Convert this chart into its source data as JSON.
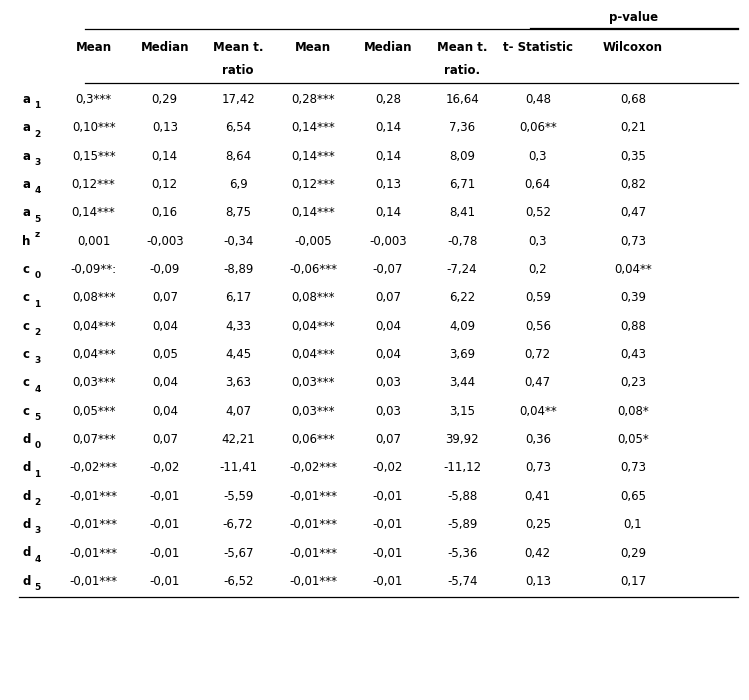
{
  "pvalue_header": "p-value",
  "col_headers_line1": [
    "Mean",
    "Median",
    "Mean t.",
    "Mean",
    "Median",
    "Mean t.",
    "t- Statistic",
    "Wilcoxon"
  ],
  "col_headers_line2": [
    "",
    "",
    "ratio",
    "",
    "",
    "ratio.",
    "",
    ""
  ],
  "row_labels_raw": [
    "a1",
    "a2",
    "a3",
    "a4",
    "a5",
    "hz",
    "c0",
    "c1",
    "c2",
    "c3",
    "c4",
    "c5",
    "d0",
    "d1",
    "d2",
    "d3",
    "d4",
    "d5"
  ],
  "col1": [
    "0,3***",
    "0,10***",
    "0,15***",
    "0,12***",
    "0,14***",
    "0,001",
    "-0,09**:",
    "0,08***",
    "0,04***",
    "0,04***",
    "0,03***",
    "0,05***",
    "0,07***",
    "-0,02***",
    "-0,01***",
    "-0,01***",
    "-0,01***",
    "-0,01***"
  ],
  "col2": [
    "0,29",
    "0,13",
    "0,14",
    "0,12",
    "0,16",
    "-0,003",
    "-0,09",
    "0,07",
    "0,04",
    "0,05",
    "0,04",
    "0,04",
    "0,07",
    "-0,02",
    "-0,01",
    "-0,01",
    "-0,01",
    "-0,01"
  ],
  "col3": [
    "17,42",
    "6,54",
    "8,64",
    "6,9",
    "8,75",
    "-0,34",
    "-8,89",
    "6,17",
    "4,33",
    "4,45",
    "3,63",
    "4,07",
    "42,21",
    "-11,41",
    "-5,59",
    "-6,72",
    "-5,67",
    "-6,52"
  ],
  "col4": [
    "0,28***",
    "0,14***",
    "0,14***",
    "0,12***",
    "0,14***",
    "-0,005",
    "-0,06***",
    "0,08***",
    "0,04***",
    "0,04***",
    "0,03***",
    "0,03***",
    "0,06***",
    "-0,02***",
    "-0,01***",
    "-0,01***",
    "-0,01***",
    "-0,01***"
  ],
  "col5": [
    "0,28",
    "0,14",
    "0,14",
    "0,13",
    "0,14",
    "-0,003",
    "-0,07",
    "0,07",
    "0,04",
    "0,04",
    "0,03",
    "0,03",
    "0,07",
    "-0,02",
    "-0,01",
    "-0,01",
    "-0,01",
    "-0,01"
  ],
  "col6": [
    "16,64",
    "7,36",
    "8,09",
    "6,71",
    "8,41",
    "-0,78",
    "-7,24",
    "6,22",
    "4,09",
    "3,69",
    "3,44",
    "3,15",
    "39,92",
    "-11,12",
    "-5,88",
    "-5,89",
    "-5,36",
    "-5,74"
  ],
  "col7": [
    "0,48",
    "0,06**",
    "0,3",
    "0,64",
    "0,52",
    "0,3",
    "0,2",
    "0,59",
    "0,56",
    "0,72",
    "0,47",
    "0,04**",
    "0,36",
    "0,73",
    "0,41",
    "0,25",
    "0,42",
    "0,13"
  ],
  "col8": [
    "0,68",
    "0,21",
    "0,35",
    "0,82",
    "0,47",
    "0,73",
    "0,04**",
    "0,39",
    "0,88",
    "0,43",
    "0,23",
    "0,08*",
    "0,05*",
    "0,73",
    "0,65",
    "0,1",
    "0,29",
    "0,17"
  ],
  "figsize": [
    7.49,
    7.0
  ],
  "dpi": 100
}
